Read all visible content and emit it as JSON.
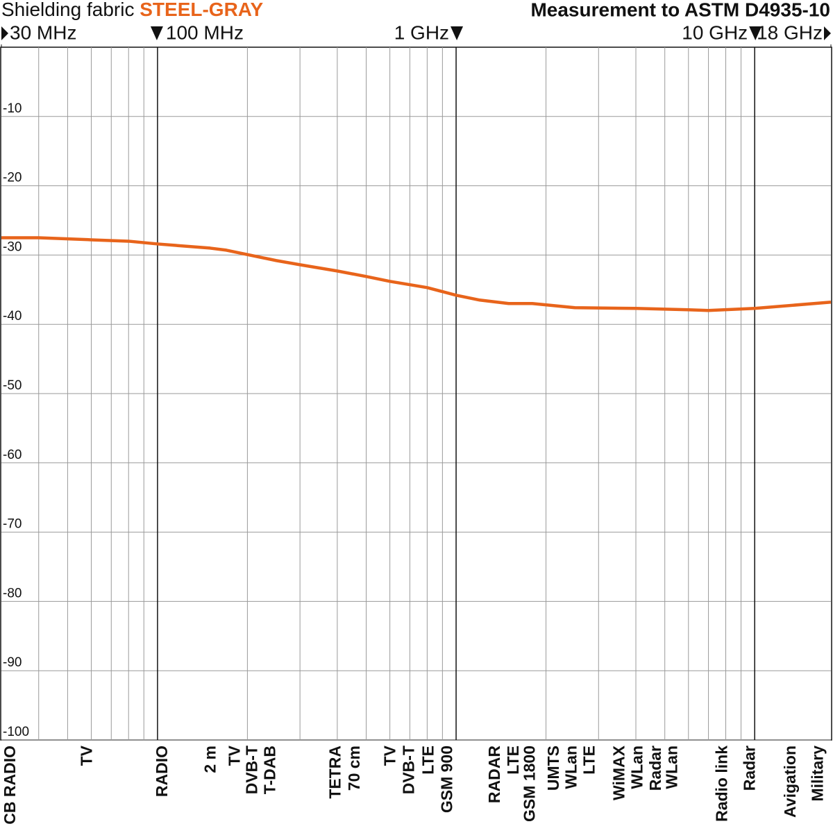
{
  "chart_data": {
    "type": "line",
    "title_prefix": "Shielding fabric",
    "title": "STEEL-GRAY",
    "subtitle": "Measurement to ASTM D4935-10",
    "log_x": true,
    "xlim": [
      30,
      18000
    ],
    "ylim": [
      -100,
      0
    ],
    "xticks": [
      {
        "value": 30,
        "label": "30 MHz"
      },
      {
        "value": 100,
        "label": "100 MHz"
      },
      {
        "value": 1000,
        "label": "1 GHz"
      },
      {
        "value": 10000,
        "label": "10 GHz"
      },
      {
        "value": 18000,
        "label": "18 GHz"
      }
    ],
    "xminor": [
      40,
      50,
      60,
      70,
      80,
      90,
      200,
      300,
      400,
      500,
      600,
      700,
      800,
      900,
      2000,
      3000,
      4000,
      5000,
      6000,
      7000,
      8000,
      9000
    ],
    "yticks": [
      -10,
      -20,
      -30,
      -40,
      -50,
      -60,
      -70,
      -80,
      -90,
      -100
    ],
    "grid": true,
    "series": [
      {
        "name": "STEEL-GRAY",
        "color": "#e8641b",
        "x": [
          30,
          40,
          60,
          80,
          100,
          150,
          170,
          250,
          300,
          400,
          500,
          600,
          800,
          1000,
          1200,
          1500,
          1800,
          2500,
          4000,
          6000,
          7000,
          10000,
          18000
        ],
        "values": [
          -27.5,
          -27.5,
          -27.8,
          -28.0,
          -28.4,
          -29.0,
          -29.3,
          -30.8,
          -31.4,
          -32.3,
          -33.1,
          -33.8,
          -34.7,
          -35.8,
          -36.5,
          -37.0,
          -37.0,
          -37.6,
          -37.7,
          -37.9,
          -38.0,
          -37.7,
          -36.8
        ]
      }
    ],
    "annotations": [
      {
        "text": "CB RADIO",
        "x": 31
      },
      {
        "text": "TV",
        "x": 56
      },
      {
        "text": "RADIO",
        "x": 100
      },
      {
        "text": "2 m",
        "x": 145
      },
      {
        "text": "TV",
        "x": 175
      },
      {
        "text": "DVB-T",
        "x": 200
      },
      {
        "text": "T-DAB",
        "x": 230
      },
      {
        "text": "TETRA",
        "x": 380
      },
      {
        "text": "70 cm",
        "x": 440
      },
      {
        "text": "TV",
        "x": 580
      },
      {
        "text": "DVB-T",
        "x": 670
      },
      {
        "text": "LTE",
        "x": 780
      },
      {
        "text": "GSM 900",
        "x": 900
      },
      {
        "text": "RADAR",
        "x": 1300
      },
      {
        "text": "LTE",
        "x": 1500
      },
      {
        "text": "GSM 1800",
        "x": 1700
      },
      {
        "text": "UMTS",
        "x": 2050
      },
      {
        "text": "WLan",
        "x": 2350
      },
      {
        "text": "LTE",
        "x": 2700
      },
      {
        "text": "WiMAX",
        "x": 3400
      },
      {
        "text": "WLan",
        "x": 3900
      },
      {
        "text": "Radar",
        "x": 4500
      },
      {
        "text": "WLan",
        "x": 5100
      },
      {
        "text": "Radio link",
        "x": 7500
      },
      {
        "text": "Radar",
        "x": 9300
      },
      {
        "text": "Avigation",
        "x": 12700
      },
      {
        "text": "Military",
        "x": 15700
      }
    ]
  }
}
